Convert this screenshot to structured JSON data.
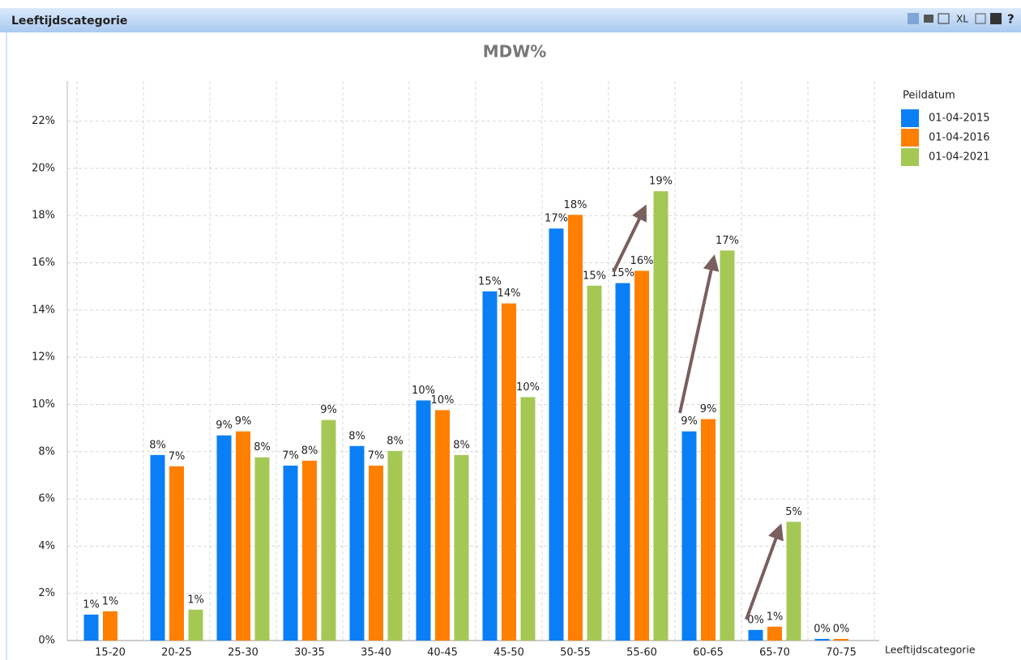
{
  "panel": {
    "title": "Leeftijdscategorie",
    "toolbar": [
      "XL",
      "?"
    ]
  },
  "chart_data": {
    "type": "bar",
    "title": "MDW%",
    "x_label": "Leeftijdscategorie",
    "legend_title": "Peildatum",
    "legend": "right",
    "grid": true,
    "categories": [
      "15-20",
      "20-25",
      "25-30",
      "30-35",
      "35-40",
      "40-45",
      "45-50",
      "50-55",
      "55-60",
      "60-65",
      "65-70",
      "70-75"
    ],
    "series": [
      {
        "name": "01-04-2015",
        "color": "#0a7ff5",
        "values": [
          1.1,
          7.86,
          8.69,
          7.41,
          8.24,
          10.17,
          14.79,
          17.45,
          15.14,
          8.86,
          0.45,
          0.07
        ],
        "value_labels": [
          "1%",
          "8%",
          "9%",
          "7%",
          "8%",
          "10%",
          "15%",
          "17%",
          "15%",
          "9%",
          "0%",
          "0%"
        ]
      },
      {
        "name": "01-04-2016",
        "color": "#ff7f00",
        "values": [
          1.24,
          7.38,
          8.86,
          7.62,
          7.41,
          9.76,
          14.28,
          18.03,
          15.66,
          9.38,
          0.59,
          0.07
        ],
        "value_labels": [
          "1%",
          "7%",
          "9%",
          "8%",
          "7%",
          "10%",
          "14%",
          "18%",
          "16%",
          "9%",
          "1%",
          "0%"
        ]
      },
      {
        "name": "01-04-2021",
        "color": "#a5c855",
        "values": [
          null,
          1.31,
          7.76,
          9.34,
          8.03,
          7.86,
          10.31,
          15.03,
          19.03,
          16.52,
          5.03,
          null
        ],
        "value_labels": [
          null,
          "1%",
          "8%",
          "9%",
          "8%",
          "8%",
          "10%",
          "15%",
          "19%",
          "17%",
          "5%",
          null
        ]
      }
    ],
    "ylim": [
      0,
      23.7
    ],
    "yticks": [
      {
        "value": 0,
        "label": "0%"
      },
      {
        "value": 2,
        "label": "2%"
      },
      {
        "value": 4,
        "label": "4%"
      },
      {
        "value": 6,
        "label": "6%"
      },
      {
        "value": 8,
        "label": "8%"
      },
      {
        "value": 10,
        "label": "10%"
      },
      {
        "value": 12,
        "label": "12%"
      },
      {
        "value": 14,
        "label": "14%"
      },
      {
        "value": 16,
        "label": "16%"
      },
      {
        "value": 18,
        "label": "18%"
      },
      {
        "value": 20,
        "label": "20%"
      },
      {
        "value": 22,
        "label": "22%"
      }
    ]
  }
}
